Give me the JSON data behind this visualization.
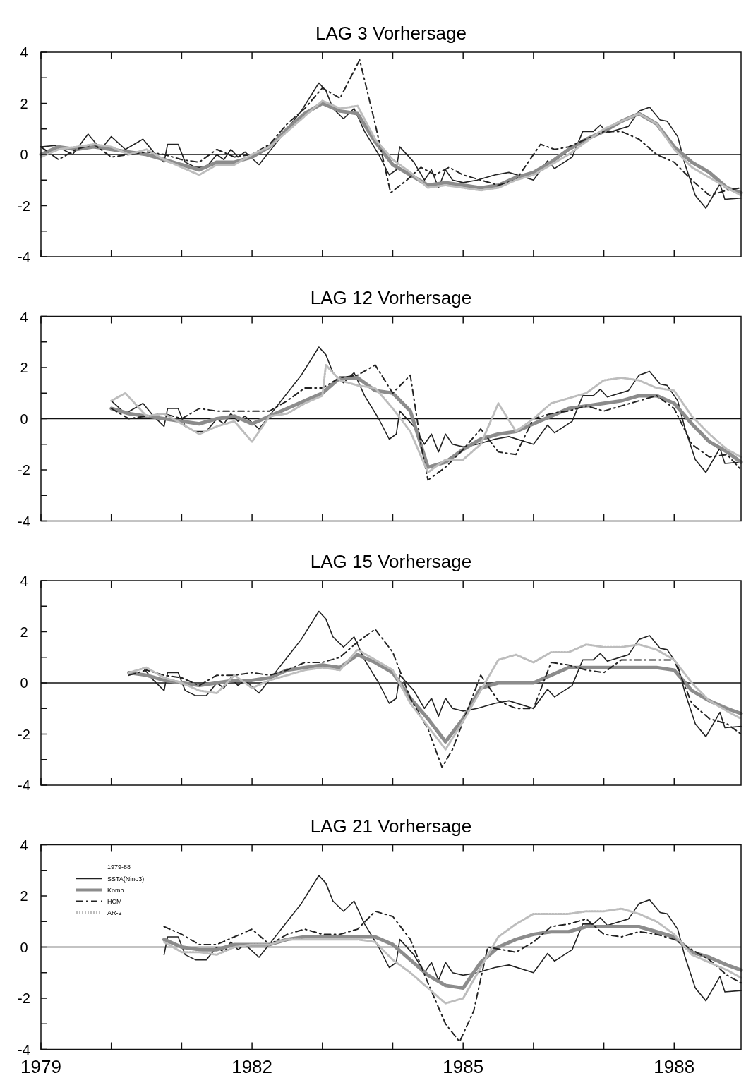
{
  "chart_data": [
    {
      "type": "line",
      "title": "LAG 3 Vorhersage",
      "xlim": [
        1979,
        1988.95
      ],
      "ylim": [
        -4,
        4
      ],
      "tick_labels": "y",
      "xticks": [
        1979,
        {
          "value": 1980,
          "label": null
        },
        {
          "value": 1981,
          "label": null
        },
        1982,
        {
          "value": 1983,
          "label": null
        },
        {
          "value": 1984,
          "label": null
        },
        1985,
        {
          "value": 1986,
          "label": null
        },
        {
          "value": 1987,
          "label": null
        },
        1988
      ],
      "yticks": [
        -4,
        {
          "value": -3,
          "label": null
        },
        -2,
        {
          "value": -1,
          "label": null
        },
        0,
        {
          "value": 1,
          "label": null
        },
        2,
        {
          "value": 3,
          "label": null
        },
        4
      ],
      "ref_lines": [
        {
          "axis": "y",
          "value": 0,
          "color": "#111111"
        }
      ],
      "series": [
        {
          "color": "#222222",
          "line_style": "solid",
          "x": [
            1979.0,
            1979.2,
            1979.45,
            1979.67,
            1979.85,
            1980.0,
            1980.2,
            1980.45,
            1980.6,
            1980.75,
            1980.8,
            1980.95,
            1981.05,
            1981.2,
            1981.35,
            1981.5,
            1981.6,
            1981.7,
            1981.8,
            1981.9,
            1982.1,
            1982.3,
            1982.5,
            1982.7,
            1982.95,
            1983.05,
            1983.15,
            1983.3,
            1983.45,
            1983.6,
            1983.8,
            1983.95,
            1984.05,
            1984.1,
            1984.3,
            1984.45,
            1984.55,
            1984.65,
            1984.75,
            1984.85,
            1985.0,
            1985.2,
            1985.45,
            1985.65,
            1986.0,
            1986.2,
            1986.3,
            1986.55,
            1986.7,
            1986.85,
            1986.95,
            1987.05,
            1987.35,
            1987.5,
            1987.65,
            1987.8,
            1987.9,
            1988.05,
            1988.15,
            1988.3,
            1988.45,
            1988.65,
            1988.72,
            1988.95
          ],
          "values": [
            0.3,
            0.35,
            0.0,
            0.8,
            0.2,
            0.7,
            0.2,
            0.6,
            0.1,
            -0.3,
            0.4,
            0.4,
            -0.3,
            -0.5,
            -0.5,
            0.0,
            -0.2,
            0.2,
            -0.1,
            0.1,
            -0.4,
            0.3,
            1.0,
            1.7,
            2.8,
            2.5,
            1.8,
            1.4,
            1.8,
            0.9,
            0.0,
            -0.8,
            -0.6,
            0.3,
            -0.3,
            -1.0,
            -0.6,
            -1.3,
            -0.6,
            -1.0,
            -1.1,
            -1.0,
            -0.8,
            -0.7,
            -1.0,
            -0.25,
            -0.55,
            -0.1,
            0.9,
            0.9,
            1.15,
            0.85,
            1.1,
            1.7,
            1.85,
            1.35,
            1.3,
            0.7,
            -0.35,
            -1.6,
            -2.1,
            -1.15,
            -1.75,
            -1.7
          ]
        },
        {
          "color": "#8c8c8c",
          "line_style": "solid",
          "x": [
            1979.0,
            1979.25,
            1979.5,
            1979.75,
            1980.0,
            1980.25,
            1980.5,
            1980.75,
            1981.0,
            1981.25,
            1981.5,
            1981.75,
            1982.0,
            1982.25,
            1982.5,
            1982.75,
            1983.0,
            1983.25,
            1983.5,
            1983.75,
            1984.0,
            1984.25,
            1984.5,
            1984.75,
            1985.0,
            1985.25,
            1985.5,
            1985.75,
            1986.0,
            1986.25,
            1986.5,
            1986.75,
            1987.0,
            1987.25,
            1987.5,
            1987.75,
            1988.0,
            1988.25,
            1988.5,
            1988.75,
            1988.95
          ],
          "values": [
            0.0,
            0.3,
            0.2,
            0.3,
            0.2,
            0.1,
            0.0,
            -0.2,
            -0.4,
            -0.6,
            -0.3,
            -0.3,
            -0.1,
            0.3,
            1.0,
            1.6,
            2.0,
            1.7,
            1.6,
            0.5,
            -0.4,
            -0.8,
            -1.2,
            -1.1,
            -1.2,
            -1.3,
            -1.2,
            -0.9,
            -0.7,
            -0.3,
            0.2,
            0.6,
            0.9,
            1.3,
            1.6,
            1.2,
            0.3,
            -0.3,
            -0.7,
            -1.3,
            -1.5
          ]
        },
        {
          "color": "#222222",
          "line_style": "dashed",
          "x": [
            1979.0,
            1979.25,
            1979.5,
            1979.75,
            1980.0,
            1980.25,
            1980.5,
            1980.75,
            1981.0,
            1981.25,
            1981.5,
            1981.75,
            1982.0,
            1982.25,
            1982.5,
            1982.75,
            1983.0,
            1983.25,
            1983.53,
            1983.75,
            1983.97,
            1984.2,
            1984.4,
            1984.6,
            1984.8,
            1985.0,
            1985.25,
            1985.5,
            1985.75,
            1986.0,
            1986.1,
            1986.3,
            1986.5,
            1986.75,
            1987.0,
            1987.25,
            1987.5,
            1987.75,
            1988.0,
            1988.25,
            1988.5,
            1988.75,
            1988.95
          ],
          "values": [
            0.3,
            -0.2,
            0.2,
            0.4,
            -0.1,
            0.0,
            0.1,
            0.0,
            -0.2,
            -0.3,
            0.2,
            -0.1,
            0.0,
            0.4,
            1.2,
            1.8,
            2.6,
            2.2,
            3.7,
            1.2,
            -1.5,
            -1.0,
            -0.5,
            -0.8,
            -0.5,
            -0.8,
            -1.0,
            -1.2,
            -1.0,
            0.0,
            0.4,
            0.2,
            0.3,
            0.6,
            0.9,
            0.9,
            0.6,
            0.0,
            -0.3,
            -1.0,
            -1.6,
            -1.4,
            -1.3
          ]
        },
        {
          "color": "#bdbdbd",
          "line_style": "dotted",
          "x": [
            1979.0,
            1979.25,
            1979.5,
            1979.75,
            1980.0,
            1980.25,
            1980.5,
            1980.75,
            1981.0,
            1981.25,
            1981.5,
            1981.75,
            1982.0,
            1982.25,
            1982.5,
            1982.75,
            1983.0,
            1983.25,
            1983.5,
            1983.75,
            1984.0,
            1984.25,
            1984.5,
            1984.75,
            1985.0,
            1985.25,
            1985.5,
            1985.75,
            1986.0,
            1986.25,
            1986.5,
            1986.75,
            1987.0,
            1987.25,
            1987.5,
            1987.75,
            1988.0,
            1988.25,
            1988.5,
            1988.75,
            1988.95
          ],
          "values": [
            -0.1,
            0.2,
            0.3,
            0.4,
            0.3,
            0.0,
            0.2,
            -0.2,
            -0.5,
            -0.8,
            -0.4,
            -0.4,
            0.0,
            0.3,
            0.9,
            1.5,
            2.1,
            1.8,
            1.9,
            0.6,
            -0.2,
            -0.7,
            -1.3,
            -1.2,
            -1.3,
            -1.4,
            -1.3,
            -1.0,
            -0.8,
            -0.4,
            0.0,
            0.5,
            1.0,
            1.3,
            1.6,
            1.2,
            0.2,
            -0.5,
            -0.9,
            -1.3,
            -1.6
          ]
        }
      ]
    },
    {
      "type": "line",
      "title": "LAG 12 Vorhersage",
      "xlim": [
        1979,
        1988.95
      ],
      "ylim": [
        -4,
        4
      ],
      "tick_labels": "y",
      "xticks": [
        1979,
        {
          "value": 1980,
          "label": null
        },
        {
          "value": 1981,
          "label": null
        },
        1982,
        {
          "value": 1983,
          "label": null
        },
        {
          "value": 1984,
          "label": null
        },
        1985,
        {
          "value": 1986,
          "label": null
        },
        {
          "value": 1987,
          "label": null
        },
        1988
      ],
      "yticks": [
        -4,
        {
          "value": -3,
          "label": null
        },
        -2,
        {
          "value": -1,
          "label": null
        },
        0,
        {
          "value": 1,
          "label": null
        },
        2,
        {
          "value": 3,
          "label": null
        },
        4
      ],
      "ref_lines": [
        {
          "axis": "y",
          "value": 0,
          "color": "#111111"
        }
      ],
      "series": [
        {
          "color": "#222222",
          "line_style": "solid",
          "x": [
            1980.0,
            1980.2,
            1980.45,
            1980.6,
            1980.75,
            1980.8,
            1980.95,
            1981.05,
            1981.2,
            1981.35,
            1981.5,
            1981.6,
            1981.7,
            1981.8,
            1981.9,
            1982.1,
            1982.3,
            1982.5,
            1982.7,
            1982.95,
            1983.05,
            1983.15,
            1983.3,
            1983.45,
            1983.6,
            1983.8,
            1983.95,
            1984.05,
            1984.1,
            1984.3,
            1984.45,
            1984.55,
            1984.65,
            1984.75,
            1984.85,
            1985.0,
            1985.2,
            1985.45,
            1985.65,
            1986.0,
            1986.2,
            1986.3,
            1986.55,
            1986.7,
            1986.85,
            1986.95,
            1987.05,
            1987.35,
            1987.5,
            1987.65,
            1987.8,
            1987.9,
            1988.05,
            1988.15,
            1988.3,
            1988.45,
            1988.65,
            1988.72,
            1988.95
          ],
          "values": [
            0.7,
            0.2,
            0.6,
            0.1,
            -0.3,
            0.4,
            0.4,
            -0.3,
            -0.5,
            -0.5,
            0.0,
            -0.2,
            0.2,
            -0.1,
            0.1,
            -0.4,
            0.3,
            1.0,
            1.7,
            2.8,
            2.5,
            1.8,
            1.4,
            1.8,
            0.9,
            0.0,
            -0.8,
            -0.6,
            0.3,
            -0.3,
            -1.0,
            -0.6,
            -1.3,
            -0.6,
            -1.0,
            -1.1,
            -1.0,
            -0.8,
            -0.7,
            -1.0,
            -0.25,
            -0.55,
            -0.1,
            0.9,
            0.9,
            1.15,
            0.85,
            1.1,
            1.7,
            1.85,
            1.35,
            1.3,
            0.7,
            -0.35,
            -1.6,
            -2.1,
            -1.15,
            -1.75,
            -1.7
          ]
        },
        {
          "color": "#8c8c8c",
          "line_style": "solid",
          "x": [
            1980.0,
            1980.25,
            1980.5,
            1980.75,
            1981.0,
            1981.25,
            1981.5,
            1981.75,
            1982.0,
            1982.25,
            1982.5,
            1982.75,
            1983.0,
            1983.25,
            1983.5,
            1983.75,
            1984.0,
            1984.25,
            1984.5,
            1984.75,
            1985.0,
            1985.25,
            1985.5,
            1985.75,
            1986.0,
            1986.25,
            1986.5,
            1986.75,
            1987.0,
            1987.25,
            1987.5,
            1987.75,
            1988.0,
            1988.25,
            1988.5,
            1988.75,
            1988.95
          ],
          "values": [
            0.4,
            0.2,
            0.1,
            0.0,
            -0.1,
            -0.2,
            0.0,
            0.1,
            -0.2,
            0.1,
            0.4,
            0.7,
            1.0,
            1.6,
            1.6,
            1.1,
            1.0,
            0.3,
            -1.9,
            -1.7,
            -1.2,
            -0.8,
            -0.6,
            -0.5,
            -0.2,
            0.1,
            0.4,
            0.5,
            0.6,
            0.7,
            0.9,
            0.9,
            0.6,
            -0.2,
            -0.9,
            -1.3,
            -1.7
          ]
        },
        {
          "color": "#222222",
          "line_style": "dashed",
          "x": [
            1980.0,
            1980.25,
            1980.5,
            1980.75,
            1981.0,
            1981.25,
            1981.5,
            1981.75,
            1982.0,
            1982.25,
            1982.5,
            1982.75,
            1983.0,
            1983.25,
            1983.5,
            1983.75,
            1984.0,
            1984.25,
            1984.4,
            1984.5,
            1984.75,
            1985.0,
            1985.25,
            1985.5,
            1985.75,
            1986.0,
            1986.25,
            1986.5,
            1986.75,
            1987.0,
            1987.25,
            1987.5,
            1987.75,
            1988.0,
            1988.25,
            1988.5,
            1988.75,
            1988.95
          ],
          "values": [
            0.4,
            0.0,
            0.1,
            0.2,
            0.0,
            0.4,
            0.3,
            0.3,
            0.3,
            0.3,
            0.7,
            1.2,
            1.2,
            1.6,
            1.7,
            2.1,
            1.0,
            1.7,
            -1.0,
            -2.4,
            -1.9,
            -1.2,
            -0.4,
            -1.3,
            -1.4,
            0.0,
            0.2,
            0.3,
            0.5,
            0.3,
            0.5,
            0.7,
            0.9,
            0.4,
            -1.0,
            -1.5,
            -1.4,
            -2.0
          ]
        },
        {
          "color": "#bdbdbd",
          "line_style": "dotted",
          "x": [
            1980.0,
            1980.2,
            1980.5,
            1980.75,
            1981.0,
            1981.25,
            1981.5,
            1981.75,
            1982.0,
            1982.25,
            1982.5,
            1982.75,
            1983.0,
            1983.05,
            1983.25,
            1983.5,
            1983.75,
            1984.0,
            1984.25,
            1984.5,
            1984.75,
            1985.0,
            1985.25,
            1985.5,
            1985.75,
            1986.0,
            1986.25,
            1986.5,
            1986.75,
            1987.0,
            1987.25,
            1987.5,
            1987.75,
            1988.0,
            1988.25,
            1988.5,
            1988.75,
            1988.95
          ],
          "values": [
            0.7,
            1.0,
            0.1,
            0.2,
            -0.2,
            -0.6,
            -0.3,
            -0.1,
            -0.9,
            0.1,
            0.2,
            0.6,
            0.9,
            2.1,
            1.5,
            1.3,
            1.2,
            0.4,
            -0.5,
            -2.1,
            -1.6,
            -1.6,
            -1.0,
            0.6,
            -0.5,
            0.0,
            0.6,
            0.8,
            1.0,
            1.5,
            1.6,
            1.5,
            1.2,
            1.1,
            0.1,
            -0.6,
            -1.2,
            -1.5
          ]
        }
      ]
    },
    {
      "type": "line",
      "title": "LAG 15 Vorhersage",
      "xlim": [
        1979,
        1988.95
      ],
      "ylim": [
        -4,
        4
      ],
      "tick_labels": "y",
      "xticks": [
        1979,
        {
          "value": 1980,
          "label": null
        },
        {
          "value": 1981,
          "label": null
        },
        1982,
        {
          "value": 1983,
          "label": null
        },
        {
          "value": 1984,
          "label": null
        },
        1985,
        {
          "value": 1986,
          "label": null
        },
        {
          "value": 1987,
          "label": null
        },
        1988
      ],
      "yticks": [
        -4,
        {
          "value": -3,
          "label": null
        },
        -2,
        {
          "value": -1,
          "label": null
        },
        0,
        {
          "value": 1,
          "label": null
        },
        2,
        {
          "value": 3,
          "label": null
        },
        4
      ],
      "ref_lines": [
        {
          "axis": "y",
          "value": 0,
          "color": "#111111"
        }
      ],
      "series": [
        {
          "color": "#222222",
          "line_style": "solid",
          "x": [
            1980.45,
            1980.6,
            1980.75,
            1980.8,
            1980.95,
            1981.05,
            1981.2,
            1981.35,
            1981.5,
            1981.6,
            1981.7,
            1981.8,
            1981.9,
            1982.1,
            1982.3,
            1982.5,
            1982.7,
            1982.95,
            1983.05,
            1983.15,
            1983.3,
            1983.45,
            1983.6,
            1983.8,
            1983.95,
            1984.05,
            1984.1,
            1984.3,
            1984.45,
            1984.55,
            1984.65,
            1984.75,
            1984.85,
            1985.0,
            1985.2,
            1985.45,
            1985.65,
            1986.0,
            1986.2,
            1986.3,
            1986.55,
            1986.7,
            1986.85,
            1986.95,
            1987.05,
            1987.35,
            1987.5,
            1987.65,
            1987.8,
            1987.9,
            1988.05,
            1988.15,
            1988.3,
            1988.45,
            1988.65,
            1988.72,
            1988.95
          ],
          "values": [
            0.6,
            0.1,
            -0.3,
            0.4,
            0.4,
            -0.3,
            -0.5,
            -0.5,
            0.0,
            -0.2,
            0.2,
            -0.1,
            0.1,
            -0.4,
            0.3,
            1.0,
            1.7,
            2.8,
            2.5,
            1.8,
            1.4,
            1.8,
            0.9,
            0.0,
            -0.8,
            -0.6,
            0.3,
            -0.3,
            -1.0,
            -0.6,
            -1.3,
            -0.6,
            -1.0,
            -1.1,
            -1.0,
            -0.8,
            -0.7,
            -1.0,
            -0.25,
            -0.55,
            -0.1,
            0.9,
            0.9,
            1.15,
            0.85,
            1.1,
            1.7,
            1.85,
            1.35,
            1.3,
            0.7,
            -0.35,
            -1.6,
            -2.1,
            -1.15,
            -1.75,
            -1.7
          ]
        },
        {
          "color": "#8c8c8c",
          "line_style": "solid",
          "x": [
            1980.25,
            1980.5,
            1980.75,
            1981.0,
            1981.25,
            1981.5,
            1981.75,
            1982.0,
            1982.25,
            1982.5,
            1982.75,
            1983.0,
            1983.25,
            1983.5,
            1983.75,
            1984.0,
            1984.25,
            1984.5,
            1984.75,
            1985.0,
            1985.25,
            1985.5,
            1985.75,
            1986.0,
            1986.25,
            1986.5,
            1986.75,
            1987.0,
            1987.25,
            1987.5,
            1987.75,
            1988.0,
            1988.25,
            1988.5,
            1988.75,
            1988.95
          ],
          "values": [
            0.4,
            0.3,
            0.1,
            0.0,
            -0.1,
            0.0,
            0.1,
            0.1,
            0.2,
            0.5,
            0.6,
            0.7,
            0.6,
            1.1,
            0.8,
            0.4,
            -0.6,
            -1.4,
            -2.3,
            -1.4,
            -0.2,
            0.0,
            0.0,
            0.0,
            0.3,
            0.6,
            0.6,
            0.6,
            0.6,
            0.6,
            0.6,
            0.5,
            -0.3,
            -0.7,
            -1.0,
            -1.2
          ]
        },
        {
          "color": "#222222",
          "line_style": "dashed",
          "x": [
            1980.25,
            1980.5,
            1980.75,
            1981.0,
            1981.25,
            1981.5,
            1981.75,
            1982.0,
            1982.25,
            1982.5,
            1982.75,
            1983.0,
            1983.25,
            1983.5,
            1983.75,
            1984.0,
            1984.25,
            1984.5,
            1984.7,
            1984.85,
            1985.0,
            1985.25,
            1985.5,
            1985.75,
            1986.0,
            1986.25,
            1986.5,
            1986.75,
            1987.0,
            1987.25,
            1987.5,
            1987.75,
            1988.0,
            1988.25,
            1988.5,
            1988.75,
            1988.95
          ],
          "values": [
            0.3,
            0.5,
            0.3,
            0.2,
            -0.1,
            0.3,
            0.3,
            0.4,
            0.3,
            0.5,
            0.8,
            0.8,
            1.0,
            1.6,
            2.1,
            1.2,
            -0.6,
            -1.8,
            -3.3,
            -2.6,
            -1.5,
            0.3,
            -0.7,
            -1.0,
            -1.0,
            0.8,
            0.7,
            0.5,
            0.4,
            0.9,
            0.9,
            0.9,
            0.9,
            -0.8,
            -1.4,
            -1.6,
            -2.0
          ]
        },
        {
          "color": "#bdbdbd",
          "line_style": "dotted",
          "x": [
            1980.25,
            1980.5,
            1980.75,
            1981.0,
            1981.25,
            1981.5,
            1981.75,
            1982.0,
            1982.25,
            1982.5,
            1982.75,
            1983.0,
            1983.25,
            1983.5,
            1983.75,
            1984.0,
            1984.25,
            1984.5,
            1984.75,
            1985.0,
            1985.25,
            1985.5,
            1985.75,
            1986.0,
            1986.25,
            1986.5,
            1986.75,
            1987.0,
            1987.25,
            1987.5,
            1987.75,
            1988.0,
            1988.25,
            1988.5,
            1988.75,
            1988.95
          ],
          "values": [
            0.4,
            0.6,
            0.2,
            0.0,
            -0.3,
            -0.4,
            0.3,
            -0.2,
            0.1,
            0.3,
            0.5,
            0.6,
            0.5,
            1.3,
            0.9,
            0.5,
            -0.8,
            -1.7,
            -2.6,
            -1.5,
            -0.3,
            0.9,
            1.1,
            0.8,
            1.2,
            1.2,
            1.5,
            1.4,
            1.4,
            1.5,
            1.3,
            0.9,
            0.0,
            -0.7,
            -1.1,
            -1.4
          ]
        }
      ]
    },
    {
      "type": "line",
      "title": "LAG 21 Vorhersage",
      "xlim": [
        1979,
        1988.95
      ],
      "ylim": [
        -4,
        4
      ],
      "legend": "top left",
      "legend_title": "1979-88",
      "xticks": [
        1979,
        {
          "value": 1980,
          "label": null
        },
        {
          "value": 1981,
          "label": null
        },
        1982,
        {
          "value": 1983,
          "label": null
        },
        {
          "value": 1984,
          "label": null
        },
        1985,
        {
          "value": 1986,
          "label": null
        },
        {
          "value": 1987,
          "label": null
        },
        1988
      ],
      "yticks": [
        -4,
        {
          "value": -3,
          "label": null
        },
        -2,
        {
          "value": -1,
          "label": null
        },
        0,
        {
          "value": 1,
          "label": null
        },
        2,
        {
          "value": 3,
          "label": null
        },
        4
      ],
      "ref_lines": [
        {
          "axis": "y",
          "value": 0,
          "color": "#111111"
        }
      ],
      "series": [
        {
          "name": "SSTA(Nino3)",
          "color": "#222222",
          "line_style": "solid",
          "x": [
            1980.75,
            1980.8,
            1980.95,
            1981.05,
            1981.2,
            1981.35,
            1981.5,
            1981.6,
            1981.7,
            1981.8,
            1981.9,
            1982.1,
            1982.3,
            1982.5,
            1982.7,
            1982.95,
            1983.05,
            1983.15,
            1983.3,
            1983.45,
            1983.6,
            1983.8,
            1983.95,
            1984.05,
            1984.1,
            1984.3,
            1984.45,
            1984.55,
            1984.65,
            1984.75,
            1984.85,
            1985.0,
            1985.2,
            1985.45,
            1985.65,
            1986.0,
            1986.2,
            1986.3,
            1986.55,
            1986.7,
            1986.85,
            1986.95,
            1987.05,
            1987.35,
            1987.5,
            1987.65,
            1987.8,
            1987.9,
            1988.05,
            1988.15,
            1988.3,
            1988.45,
            1988.65,
            1988.72,
            1988.95
          ],
          "values": [
            -0.3,
            0.4,
            0.4,
            -0.3,
            -0.5,
            -0.5,
            0.0,
            -0.2,
            0.2,
            -0.1,
            0.1,
            -0.4,
            0.3,
            1.0,
            1.7,
            2.8,
            2.5,
            1.8,
            1.4,
            1.8,
            0.9,
            0.0,
            -0.8,
            -0.6,
            0.3,
            -0.3,
            -1.0,
            -0.6,
            -1.3,
            -0.6,
            -1.0,
            -1.1,
            -1.0,
            -0.8,
            -0.7,
            -1.0,
            -0.25,
            -0.55,
            -0.1,
            0.9,
            0.9,
            1.15,
            0.85,
            1.1,
            1.7,
            1.85,
            1.35,
            1.3,
            0.7,
            -0.35,
            -1.6,
            -2.1,
            -1.15,
            -1.75,
            -1.7
          ]
        },
        {
          "name": "Komb",
          "color": "#8c8c8c",
          "line_style": "solid",
          "x": [
            1980.75,
            1981.0,
            1981.25,
            1981.5,
            1981.75,
            1982.0,
            1982.25,
            1982.5,
            1982.75,
            1983.0,
            1983.25,
            1983.5,
            1983.75,
            1984.0,
            1984.25,
            1984.5,
            1984.75,
            1985.0,
            1985.25,
            1985.5,
            1985.75,
            1986.0,
            1986.25,
            1986.5,
            1986.75,
            1987.0,
            1987.25,
            1987.5,
            1987.75,
            1988.0,
            1988.25,
            1988.5,
            1988.75,
            1988.95
          ],
          "values": [
            0.3,
            0.0,
            -0.1,
            -0.1,
            0.1,
            0.1,
            0.1,
            0.3,
            0.4,
            0.4,
            0.4,
            0.4,
            0.4,
            0.1,
            -0.5,
            -1.1,
            -1.5,
            -1.6,
            -0.6,
            0.0,
            0.3,
            0.5,
            0.6,
            0.6,
            0.8,
            0.8,
            0.8,
            0.8,
            0.6,
            0.4,
            -0.2,
            -0.4,
            -0.7,
            -0.9
          ]
        },
        {
          "name": "HCM",
          "color": "#222222",
          "line_style": "dashed",
          "x": [
            1980.75,
            1981.0,
            1981.25,
            1981.5,
            1981.75,
            1982.0,
            1982.25,
            1982.5,
            1982.75,
            1983.0,
            1983.25,
            1983.5,
            1983.75,
            1984.0,
            1984.25,
            1984.5,
            1984.75,
            1984.95,
            1985.15,
            1985.35,
            1985.75,
            1986.0,
            1986.25,
            1986.5,
            1986.75,
            1987.0,
            1987.25,
            1987.5,
            1987.75,
            1988.0,
            1988.25,
            1988.5,
            1988.75,
            1988.95
          ],
          "values": [
            0.8,
            0.5,
            0.1,
            0.1,
            0.4,
            0.7,
            0.1,
            0.5,
            0.7,
            0.5,
            0.5,
            0.7,
            1.4,
            1.2,
            0.3,
            -1.4,
            -3.0,
            -3.7,
            -2.5,
            0.0,
            -0.2,
            0.2,
            0.8,
            0.9,
            1.1,
            0.5,
            0.4,
            0.6,
            0.5,
            0.3,
            -0.1,
            -0.5,
            -1.1,
            -1.4
          ]
        },
        {
          "name": "AR-2",
          "color": "#bdbdbd",
          "line_style": "dotted",
          "x": [
            1980.75,
            1981.0,
            1981.25,
            1981.5,
            1981.75,
            1982.0,
            1982.25,
            1982.5,
            1982.75,
            1983.0,
            1983.25,
            1983.5,
            1983.75,
            1984.0,
            1984.25,
            1984.5,
            1984.75,
            1985.0,
            1985.25,
            1985.5,
            1985.75,
            1986.0,
            1986.25,
            1986.5,
            1986.75,
            1987.0,
            1987.25,
            1987.5,
            1987.75,
            1988.0,
            1988.25,
            1988.5,
            1988.75,
            1988.95
          ],
          "values": [
            0.2,
            -0.2,
            -0.2,
            -0.3,
            0.0,
            0.1,
            0.1,
            0.3,
            0.3,
            0.3,
            0.3,
            0.3,
            0.2,
            -0.5,
            -1.0,
            -1.6,
            -2.2,
            -2.0,
            -0.8,
            0.4,
            0.9,
            1.3,
            1.3,
            1.3,
            1.4,
            1.4,
            1.5,
            1.3,
            1.0,
            0.5,
            -0.3,
            -0.6,
            -0.9,
            -1.2
          ]
        }
      ]
    }
  ]
}
